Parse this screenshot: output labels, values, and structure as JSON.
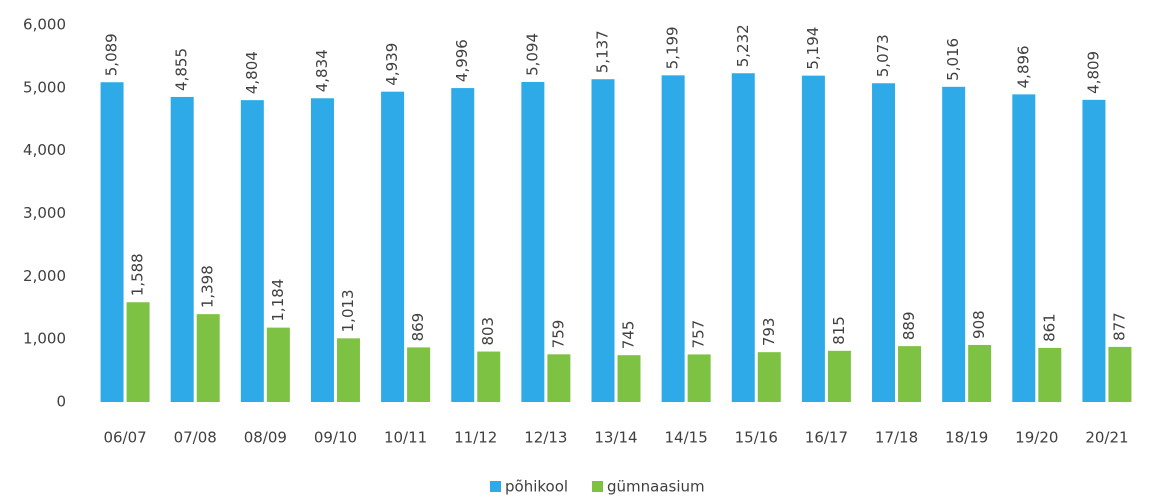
{
  "chart_data": {
    "type": "bar",
    "categories": [
      "06/07",
      "07/08",
      "08/09",
      "09/10",
      "10/11",
      "11/12",
      "12/13",
      "13/14",
      "14/15",
      "15/16",
      "16/17",
      "17/18",
      "18/19",
      "19/20",
      "20/21"
    ],
    "series": [
      {
        "name": "põhikool",
        "color": "#2eaae8",
        "values": [
          5089,
          4855,
          4804,
          4834,
          4939,
          4996,
          5094,
          5137,
          5199,
          5232,
          5194,
          5073,
          5016,
          4896,
          4809
        ],
        "value_labels": [
          "5,089",
          "4,855",
          "4,804",
          "4,834",
          "4,939",
          "4,996",
          "5,094",
          "5,137",
          "5,199",
          "5,232",
          "5,194",
          "5,073",
          "5,016",
          "4,896",
          "4,809"
        ]
      },
      {
        "name": "gümnaasium",
        "color": "#7dc242",
        "values": [
          1588,
          1398,
          1184,
          1013,
          869,
          803,
          759,
          745,
          757,
          793,
          815,
          889,
          908,
          861,
          877
        ],
        "value_labels": [
          "1,588",
          "1,398",
          "1,184",
          "1,013",
          "869",
          "803",
          "759",
          "745",
          "757",
          "793",
          "815",
          "889",
          "908",
          "861",
          "877"
        ]
      }
    ],
    "ylim": [
      0,
      6000
    ],
    "yticks": [
      0,
      {
        "value": 1000,
        "label": "1,000"
      },
      {
        "value": 2000,
        "label": "2,000"
      },
      {
        "value": 3000,
        "label": "3,000"
      },
      {
        "value": 4000,
        "label": "4,000"
      },
      {
        "value": 5000,
        "label": "5,000"
      },
      {
        "value": 6000,
        "label": "6,000"
      }
    ],
    "legend": "bottom"
  }
}
